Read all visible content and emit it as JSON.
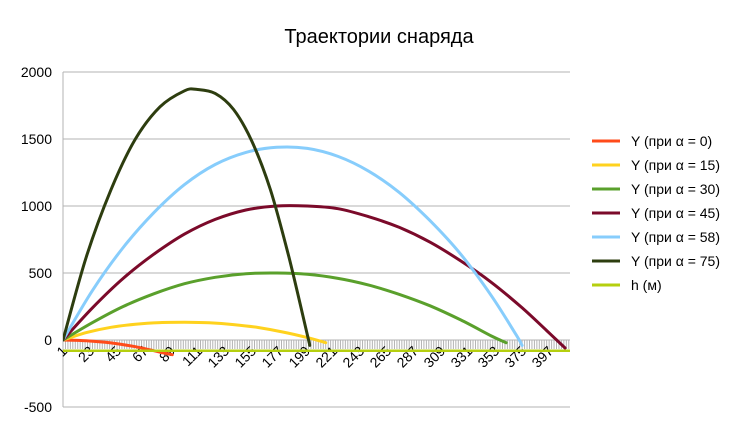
{
  "chart_data": {
    "type": "line",
    "title": "Траектории снаряда",
    "xlabel": "",
    "ylabel": "",
    "ylim": [
      -500,
      2000
    ],
    "yticks": [
      -500,
      0,
      500,
      1000,
      1500,
      2000
    ],
    "xlim": [
      1,
      414
    ],
    "xticks": [
      1,
      23,
      45,
      67,
      89,
      111,
      133,
      155,
      177,
      199,
      221,
      243,
      265,
      287,
      309,
      331,
      353,
      375,
      397
    ],
    "grid": {
      "horizontal": true,
      "vertical": false
    },
    "legend_position": "right",
    "series": [
      {
        "name": "Y (при α = 0)",
        "color": "#ff4b1a",
        "width": 3,
        "points": [
          [
            1,
            0
          ],
          [
            20,
            -5
          ],
          [
            40,
            -22
          ],
          [
            60,
            -50
          ],
          [
            80,
            -90
          ],
          [
            90,
            -110
          ]
        ]
      },
      {
        "name": "Y (при α = 15)",
        "color": "#ffd21e",
        "width": 3,
        "points": [
          [
            1,
            0
          ],
          [
            20,
            55
          ],
          [
            40,
            95
          ],
          [
            60,
            118
          ],
          [
            80,
            130
          ],
          [
            100,
            132
          ],
          [
            120,
            128
          ],
          [
            140,
            115
          ],
          [
            160,
            93
          ],
          [
            180,
            60
          ],
          [
            200,
            18
          ],
          [
            215,
            -20
          ]
        ]
      },
      {
        "name": "Y (при α = 30)",
        "color": "#5aa02c",
        "width": 3,
        "points": [
          [
            1,
            0
          ],
          [
            25,
            130
          ],
          [
            50,
            250
          ],
          [
            75,
            345
          ],
          [
            100,
            420
          ],
          [
            125,
            468
          ],
          [
            150,
            495
          ],
          [
            175,
            500
          ],
          [
            200,
            490
          ],
          [
            225,
            460
          ],
          [
            250,
            410
          ],
          [
            275,
            340
          ],
          [
            300,
            255
          ],
          [
            325,
            150
          ],
          [
            350,
            30
          ],
          [
            362,
            -20
          ]
        ]
      },
      {
        "name": "Y (при α = 45)",
        "color": "#7b0a2a",
        "width": 3,
        "points": [
          [
            1,
            0
          ],
          [
            25,
            240
          ],
          [
            50,
            460
          ],
          [
            75,
            640
          ],
          [
            100,
            790
          ],
          [
            125,
            900
          ],
          [
            150,
            970
          ],
          [
            175,
            1000
          ],
          [
            200,
            1000
          ],
          [
            225,
            980
          ],
          [
            250,
            920
          ],
          [
            275,
            840
          ],
          [
            300,
            730
          ],
          [
            325,
            590
          ],
          [
            350,
            430
          ],
          [
            375,
            240
          ],
          [
            395,
            70
          ],
          [
            410,
            -60
          ]
        ]
      },
      {
        "name": "Y (при α = 58)",
        "color": "#87cdfc",
        "width": 3,
        "points": [
          [
            1,
            0
          ],
          [
            25,
            370
          ],
          [
            50,
            690
          ],
          [
            75,
            950
          ],
          [
            100,
            1160
          ],
          [
            125,
            1310
          ],
          [
            150,
            1400
          ],
          [
            175,
            1438
          ],
          [
            200,
            1430
          ],
          [
            225,
            1370
          ],
          [
            250,
            1260
          ],
          [
            275,
            1100
          ],
          [
            300,
            890
          ],
          [
            325,
            640
          ],
          [
            350,
            330
          ],
          [
            370,
            40
          ],
          [
            375,
            -40
          ]
        ]
      },
      {
        "name": "Y (при α = 75)",
        "color": "#2d3d0f",
        "width": 3,
        "points": [
          [
            1,
            0
          ],
          [
            20,
            620
          ],
          [
            40,
            1120
          ],
          [
            60,
            1500
          ],
          [
            80,
            1740
          ],
          [
            100,
            1860
          ],
          [
            110,
            1870
          ],
          [
            125,
            1840
          ],
          [
            140,
            1720
          ],
          [
            155,
            1480
          ],
          [
            170,
            1120
          ],
          [
            185,
            620
          ],
          [
            200,
            40
          ],
          [
            202,
            -40
          ]
        ]
      },
      {
        "name": "h (м)",
        "color": "#b5cf0f",
        "width": 2.5,
        "points": [
          [
            1,
            -80
          ],
          [
            414,
            -80
          ]
        ]
      }
    ]
  }
}
